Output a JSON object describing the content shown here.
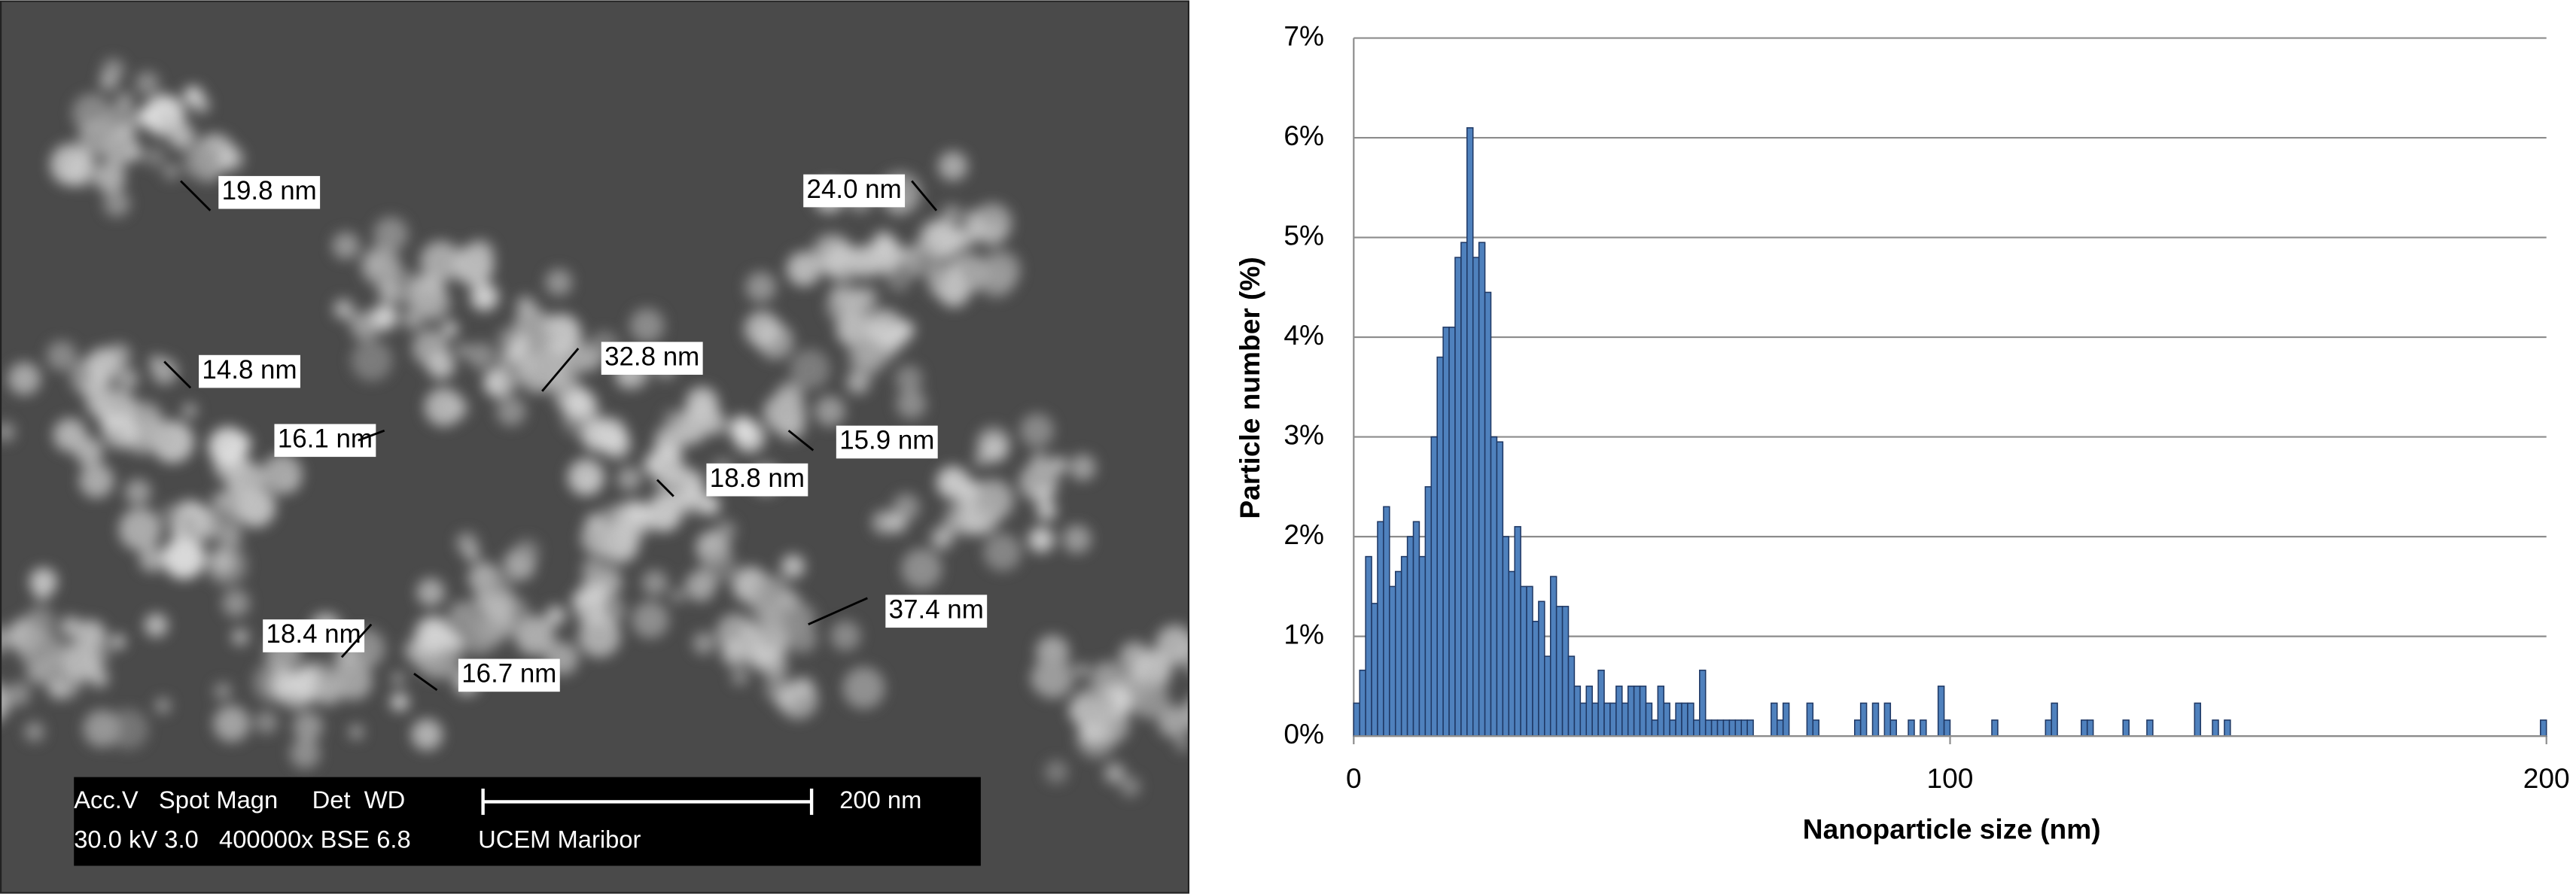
{
  "micrograph": {
    "labels": [
      "19.8 nm",
      "24.0 nm",
      "14.8 nm",
      "32.8 nm",
      "16.1 nm",
      "15.9 nm",
      "18.8 nm",
      "37.4 nm",
      "18.4 nm",
      "16.7 nm"
    ],
    "info_header": "Acc.V   Spot Magn     Det  WD",
    "scale_label": "200 nm",
    "info_values": "30.0 kV 3.0   400000x BSE 6.8",
    "lab": "UCEM Maribor"
  },
  "chart_data": {
    "type": "histogram",
    "xlabel": "Nanoparticle size (nm)",
    "ylabel": "Particle number (%)",
    "color": "#4f81bd",
    "edgecolor": "#1f3864",
    "grid": true,
    "bins": [
      0,
      1,
      2,
      3,
      4,
      5,
      6,
      7,
      8,
      9,
      10,
      11,
      12,
      13,
      14,
      15,
      16,
      17,
      18,
      19,
      20,
      21,
      22,
      23,
      24,
      25,
      26,
      27,
      28,
      29,
      30,
      31,
      32,
      33,
      34,
      35,
      36,
      37,
      38,
      39,
      40,
      41,
      42,
      43,
      44,
      45,
      46,
      47,
      48,
      49,
      50,
      51,
      52,
      53,
      54,
      55,
      56,
      57,
      58,
      59,
      60,
      61,
      62,
      63,
      64,
      65,
      66,
      67,
      68,
      69,
      70,
      71,
      72,
      73,
      74,
      75,
      76,
      77,
      78,
      79,
      80,
      81,
      82,
      83,
      84,
      85,
      86,
      87,
      88,
      89,
      90,
      91,
      92,
      93,
      94,
      95,
      96,
      97,
      98,
      99,
      100,
      101,
      102,
      103,
      104,
      105,
      106,
      107,
      108,
      109,
      110,
      111,
      112,
      113,
      114,
      115,
      116,
      117,
      118,
      119,
      120,
      121,
      122,
      123,
      124,
      125,
      126,
      127,
      128,
      129,
      130,
      131,
      132,
      133,
      134,
      135,
      136,
      137,
      138,
      139,
      140,
      141,
      142,
      143,
      144,
      145,
      146,
      147,
      148,
      149,
      150,
      151,
      152,
      153,
      154,
      155,
      156,
      157,
      158,
      159,
      160,
      161,
      162,
      163,
      164,
      165,
      166,
      167,
      168,
      169,
      170,
      171,
      172,
      173,
      174,
      175,
      176,
      177,
      178,
      179,
      180,
      181,
      182,
      183,
      184,
      185,
      186,
      187,
      188,
      189,
      190,
      191,
      192,
      193,
      194,
      195,
      196,
      197,
      198,
      199,
      200
    ],
    "counts": [
      0.33,
      0.66,
      1.8,
      1.33,
      2.15,
      2.3,
      1.5,
      1.65,
      1.8,
      2.0,
      2.15,
      1.8,
      2.5,
      3.0,
      3.8,
      4.1,
      4.1,
      4.8,
      4.95,
      6.1,
      4.8,
      4.95,
      4.45,
      3.0,
      2.95,
      2.0,
      1.65,
      2.1,
      1.5,
      1.5,
      1.15,
      1.35,
      0.8,
      1.6,
      1.3,
      1.3,
      0.8,
      0.5,
      0.33,
      0.5,
      0.33,
      0.66,
      0.33,
      0.33,
      0.5,
      0.33,
      0.5,
      0.5,
      0.5,
      0.33,
      0.16,
      0.5,
      0.33,
      0.16,
      0.33,
      0.33,
      0.33,
      0.16,
      0.66,
      0.16,
      0.16,
      0.16,
      0.16,
      0.16,
      0.16,
      0.16,
      0.16,
      0,
      0,
      0,
      0.33,
      0.16,
      0.33,
      0,
      0,
      0,
      0.33,
      0.16,
      0,
      0,
      0,
      0,
      0,
      0,
      0.16,
      0.33,
      0,
      0.33,
      0,
      0.33,
      0.16,
      0,
      0,
      0.16,
      0,
      0.16,
      0,
      0,
      0.5,
      0.16,
      0,
      0,
      0,
      0,
      0,
      0,
      0,
      0.16,
      0,
      0,
      0,
      0,
      0,
      0,
      0,
      0,
      0.16,
      0.33,
      0,
      0,
      0,
      0,
      0.16,
      0.16,
      0,
      0,
      0,
      0,
      0,
      0.16,
      0,
      0,
      0,
      0.16,
      0,
      0,
      0,
      0,
      0,
      0,
      0,
      0.33,
      0,
      0,
      0.16,
      0,
      0.16,
      0,
      0,
      0,
      0,
      0,
      0,
      0,
      0,
      0,
      0,
      0,
      0,
      0,
      0,
      0,
      0,
      0,
      0,
      0,
      0,
      0,
      0,
      0,
      0,
      0,
      0,
      0,
      0,
      0,
      0,
      0,
      0,
      0,
      0,
      0,
      0,
      0,
      0,
      0,
      0,
      0,
      0,
      0,
      0,
      0,
      0,
      0,
      0,
      0,
      0,
      0,
      0,
      0.16
    ],
    "xlim": [
      0,
      200
    ],
    "xticks": [
      0,
      100,
      200
    ],
    "ylim": [
      0,
      7
    ],
    "yticks": [
      {
        "value": 0,
        "label": "0%"
      },
      {
        "value": 1,
        "label": "1%"
      },
      {
        "value": 2,
        "label": "2%"
      },
      {
        "value": 3,
        "label": "3%"
      },
      {
        "value": 4,
        "label": "4%"
      },
      {
        "value": 5,
        "label": "5%"
      },
      {
        "value": 6,
        "label": "6%"
      },
      {
        "value": 7,
        "label": "7%"
      }
    ]
  }
}
